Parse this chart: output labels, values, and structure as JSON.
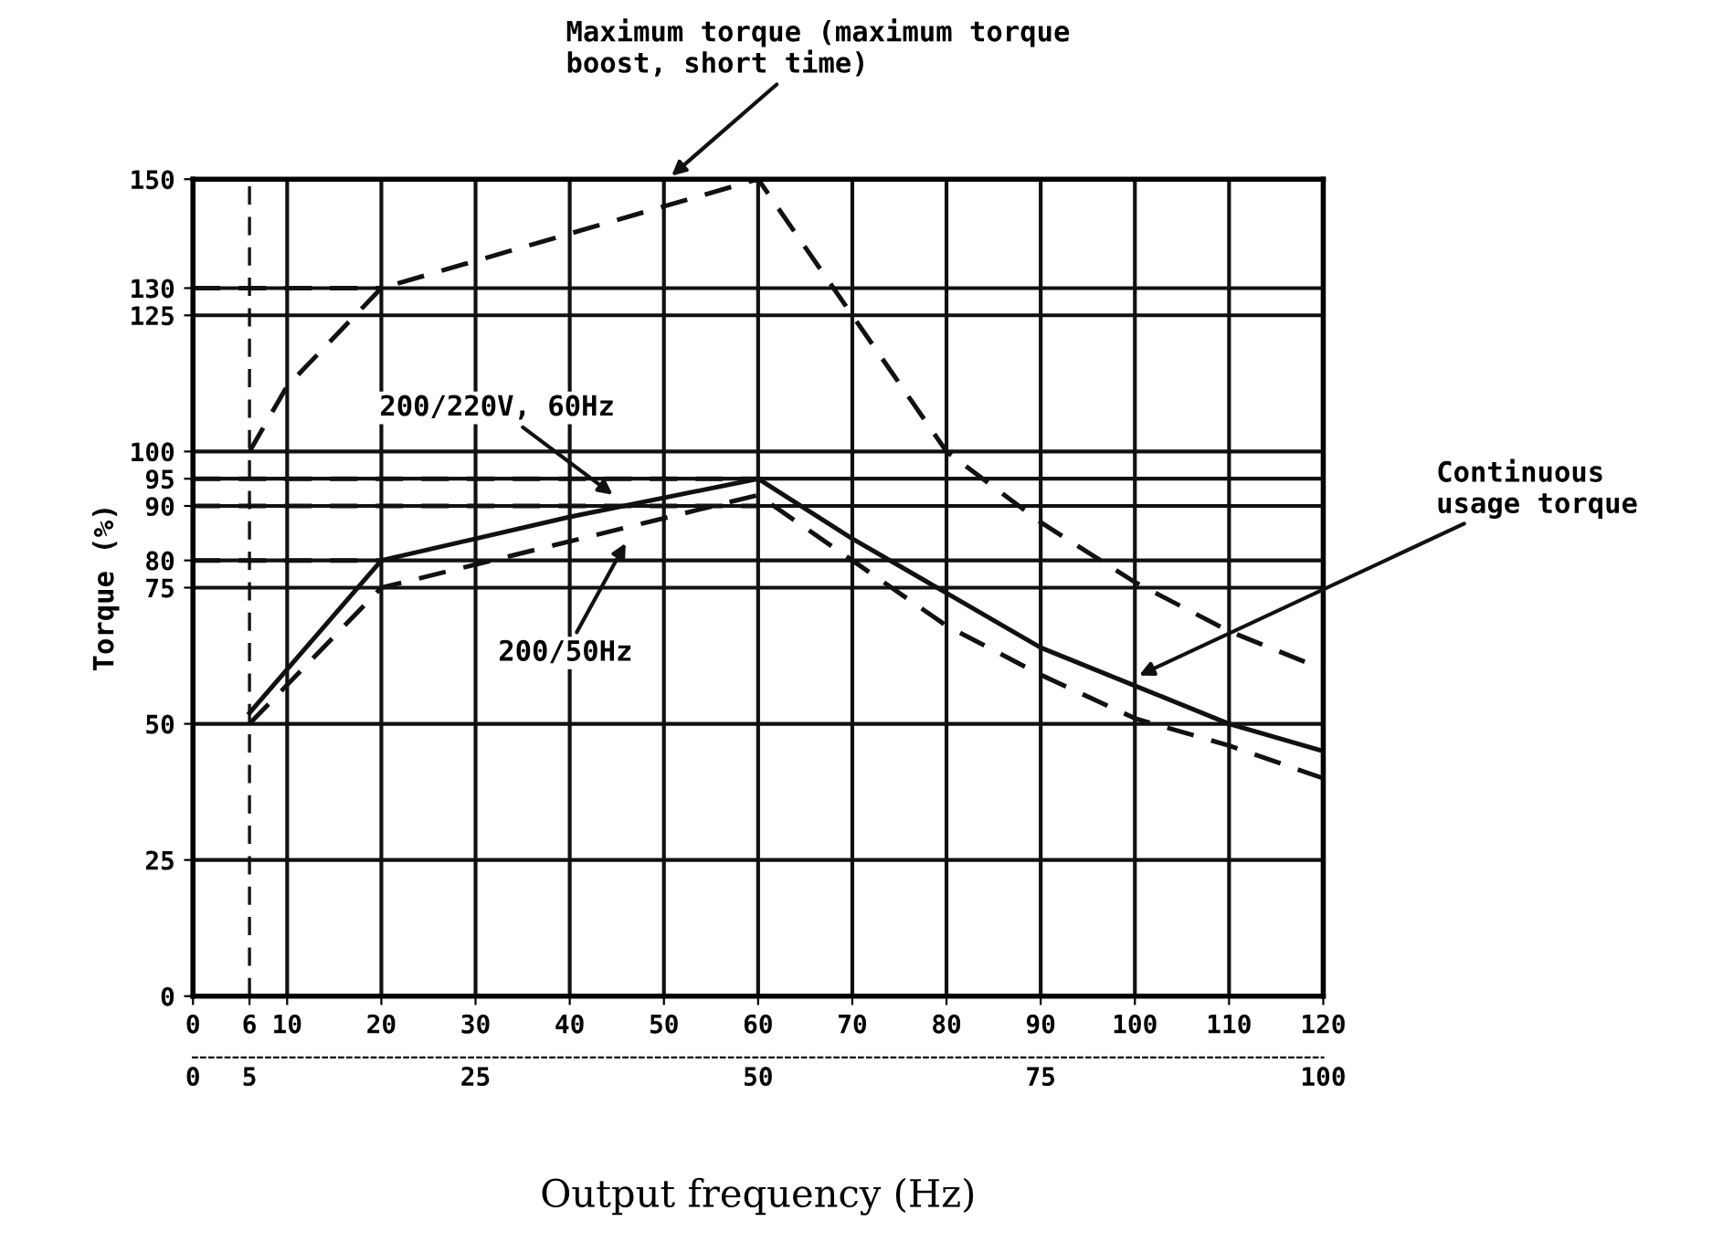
{
  "chart_data": {
    "type": "line",
    "xlabel": "Output frequency (Hz)",
    "ylabel": "Torque (%)",
    "series": [
      {
        "color": "#111111",
        "line_style": "dashed",
        "x": [
          6,
          10,
          20,
          60,
          70,
          80,
          90,
          100,
          110,
          120
        ],
        "values": [
          100,
          112,
          130,
          150,
          125,
          100,
          87,
          76,
          67,
          60
        ]
      },
      {
        "color": "#111111",
        "line_style": "solid",
        "x": [
          6,
          20,
          40,
          60,
          70,
          80,
          90,
          100,
          110,
          120
        ],
        "values": [
          52,
          80,
          88,
          95,
          84,
          74,
          64,
          57,
          50,
          45
        ]
      },
      {
        "color": "#111111",
        "line_style": "dashed",
        "x": [
          6,
          20,
          60,
          70,
          80,
          90,
          100,
          110,
          120
        ],
        "values": [
          50,
          75,
          92,
          80,
          68,
          59,
          51,
          46,
          40
        ]
      },
      {
        "color": "#111111",
        "line_style": "dashed",
        "x": [
          0,
          20
        ],
        "values": [
          130,
          130
        ]
      },
      {
        "color": "#111111",
        "line_style": "dashed",
        "x": [
          0,
          60
        ],
        "values": [
          95,
          95
        ]
      },
      {
        "color": "#111111",
        "line_style": "dashed",
        "x": [
          0,
          60
        ],
        "values": [
          90,
          90
        ]
      },
      {
        "color": "#111111",
        "line_style": "dashed",
        "x": [
          0,
          20
        ],
        "values": [
          80,
          80
        ]
      }
    ],
    "ref_lines": [
      {
        "axis": "x",
        "value": 6,
        "color": "#111111",
        "line_style": "dashed"
      }
    ],
    "annotations": [
      "Maximum torque (maximum torque\nboost, short time)",
      "200/220V, 60Hz",
      "200/50Hz",
      "Continuous\nusage torque"
    ],
    "xlim": [
      0,
      120
    ],
    "xticks": [
      0,
      6,
      10,
      20,
      30,
      40,
      50,
      60,
      70,
      80,
      90,
      100,
      110,
      120
    ],
    "ylim": [
      0,
      150
    ],
    "yticks": [
      0,
      25,
      50,
      75,
      80,
      90,
      95,
      100,
      125,
      130,
      150
    ],
    "x2lim": [
      0,
      100
    ],
    "x2ticks": [
      0,
      5,
      25,
      50,
      75,
      100
    ],
    "grid": true,
    "legend": false,
    "marker": "none"
  }
}
